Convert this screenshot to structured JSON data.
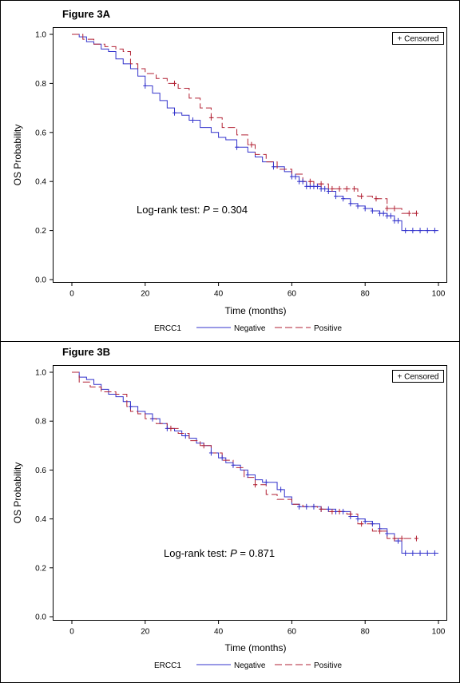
{
  "figure": {
    "legend": {
      "group_label": "ERCC1",
      "items": [
        {
          "label": "Negative",
          "color": "#3333cc",
          "style": "solid"
        },
        {
          "label": "Positive",
          "color": "#b22234",
          "style": "dashed"
        }
      ],
      "censored_label": "+ Censored"
    }
  },
  "chart_data": [
    {
      "type": "line",
      "panel_title": "Figure 3A",
      "xlabel": "Time (months)",
      "ylabel": "OS Probability",
      "xlim": [
        0,
        100
      ],
      "ylim": [
        0,
        1
      ],
      "xticks": [
        0,
        20,
        40,
        60,
        80,
        100
      ],
      "yticks": [
        "0.0",
        "0.2",
        "0.4",
        "0.6",
        "0.8",
        "1.0"
      ],
      "annotation": {
        "prefix": "Log-rank test: ",
        "italic": "P",
        "suffix": " = 0.304"
      },
      "series": [
        {
          "name": "Negative",
          "step": true,
          "x": [
            0,
            2,
            4,
            6,
            8,
            10,
            12,
            14,
            16,
            18,
            20,
            22,
            24,
            26,
            28,
            30,
            32,
            35,
            38,
            40,
            42,
            45,
            48,
            50,
            52,
            55,
            58,
            60,
            62,
            64,
            66,
            68,
            70,
            72,
            74,
            76,
            78,
            80,
            82,
            84,
            86,
            88,
            90,
            92,
            95,
            100
          ],
          "y": [
            1.0,
            0.99,
            0.97,
            0.96,
            0.94,
            0.93,
            0.9,
            0.88,
            0.86,
            0.83,
            0.79,
            0.76,
            0.73,
            0.7,
            0.68,
            0.67,
            0.65,
            0.62,
            0.6,
            0.58,
            0.57,
            0.54,
            0.52,
            0.5,
            0.48,
            0.46,
            0.44,
            0.42,
            0.4,
            0.38,
            0.38,
            0.37,
            0.36,
            0.34,
            0.33,
            0.31,
            0.3,
            0.29,
            0.28,
            0.27,
            0.26,
            0.24,
            0.2,
            0.2,
            0.2,
            0.2
          ],
          "censored_x": [
            20,
            28,
            33,
            45,
            55,
            60,
            61,
            62,
            63,
            64,
            65,
            66,
            67,
            68,
            69,
            70,
            72,
            74,
            76,
            78,
            80,
            82,
            84,
            85,
            86,
            87,
            88,
            89,
            91,
            93,
            95,
            97,
            99
          ]
        },
        {
          "name": "Positive",
          "step": true,
          "x": [
            0,
            3,
            6,
            9,
            12,
            14,
            16,
            18,
            20,
            23,
            26,
            29,
            32,
            35,
            38,
            41,
            45,
            48,
            50,
            53,
            56,
            60,
            63,
            66,
            70,
            74,
            78,
            82,
            86,
            90,
            94
          ],
          "y": [
            1.0,
            0.98,
            0.96,
            0.95,
            0.94,
            0.93,
            0.88,
            0.86,
            0.84,
            0.82,
            0.8,
            0.78,
            0.74,
            0.7,
            0.66,
            0.62,
            0.59,
            0.55,
            0.51,
            0.48,
            0.45,
            0.43,
            0.4,
            0.39,
            0.37,
            0.37,
            0.34,
            0.33,
            0.29,
            0.27,
            0.27
          ],
          "censored_x": [
            28,
            38,
            49,
            65,
            68,
            71,
            73,
            75,
            77,
            79,
            83,
            86,
            88,
            92,
            94
          ]
        }
      ]
    },
    {
      "type": "line",
      "panel_title": "Figure 3B",
      "xlabel": "Time (months)",
      "ylabel": "OS Probability",
      "xlim": [
        0,
        100
      ],
      "ylim": [
        0,
        1
      ],
      "xticks": [
        0,
        20,
        40,
        60,
        80,
        100
      ],
      "yticks": [
        "0.0",
        "0.2",
        "0.4",
        "0.6",
        "0.8",
        "1.0"
      ],
      "annotation": {
        "prefix": "Log-rank test: ",
        "italic": "P",
        "suffix": " = 0.871"
      },
      "series": [
        {
          "name": "Negative",
          "step": true,
          "x": [
            0,
            2,
            4,
            6,
            8,
            10,
            12,
            14,
            16,
            18,
            20,
            22,
            24,
            26,
            28,
            30,
            32,
            34,
            36,
            38,
            40,
            42,
            44,
            46,
            48,
            50,
            52,
            54,
            56,
            58,
            60,
            62,
            64,
            66,
            68,
            70,
            72,
            74,
            76,
            78,
            80,
            82,
            84,
            86,
            88,
            90,
            100
          ],
          "y": [
            1.0,
            0.98,
            0.97,
            0.95,
            0.93,
            0.91,
            0.9,
            0.88,
            0.86,
            0.84,
            0.83,
            0.81,
            0.79,
            0.77,
            0.76,
            0.74,
            0.73,
            0.71,
            0.7,
            0.67,
            0.65,
            0.63,
            0.62,
            0.6,
            0.58,
            0.56,
            0.55,
            0.55,
            0.52,
            0.49,
            0.46,
            0.45,
            0.45,
            0.45,
            0.44,
            0.44,
            0.43,
            0.43,
            0.41,
            0.4,
            0.39,
            0.38,
            0.36,
            0.34,
            0.31,
            0.26,
            0.26
          ],
          "censored_x": [
            16,
            22,
            26,
            31,
            38,
            41,
            44,
            48,
            53,
            57,
            62,
            64,
            66,
            68,
            70,
            72,
            74,
            76,
            78,
            80,
            82,
            84,
            86,
            89,
            91,
            93,
            95,
            97,
            99
          ]
        },
        {
          "name": "Positive",
          "step": true,
          "x": [
            0,
            2,
            5,
            8,
            12,
            15,
            16,
            18,
            20,
            23,
            26,
            29,
            32,
            35,
            38,
            41,
            44,
            47,
            50,
            53,
            56,
            60,
            63,
            67,
            70,
            75,
            78,
            82,
            86,
            94
          ],
          "y": [
            1.0,
            0.96,
            0.94,
            0.92,
            0.91,
            0.86,
            0.84,
            0.83,
            0.81,
            0.79,
            0.77,
            0.75,
            0.72,
            0.7,
            0.67,
            0.64,
            0.61,
            0.57,
            0.54,
            0.5,
            0.48,
            0.46,
            0.45,
            0.44,
            0.43,
            0.42,
            0.38,
            0.35,
            0.32,
            0.32
          ],
          "censored_x": [
            27,
            36,
            50,
            68,
            71,
            73,
            76,
            79,
            84,
            88,
            90,
            94
          ]
        }
      ]
    }
  ]
}
